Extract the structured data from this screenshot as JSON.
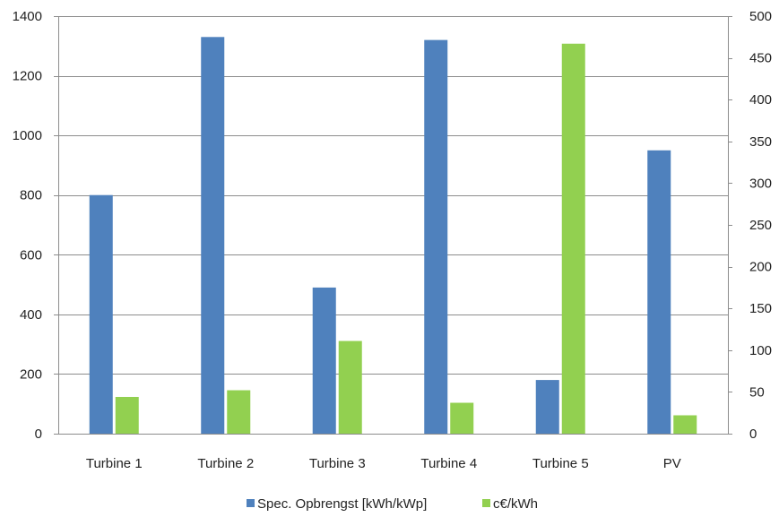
{
  "chart_data": {
    "type": "bar",
    "categories": [
      "Turbine 1",
      "Turbine 2",
      "Turbine 3",
      "Turbine 4",
      "Turbine 5",
      "PV"
    ],
    "series": [
      {
        "name": "Spec. Opbrengst [kWh/kWp]",
        "axis": "left",
        "color": "#4f81bd",
        "values": [
          800,
          1330,
          490,
          1320,
          180,
          950
        ]
      },
      {
        "name": "c€/kWh",
        "axis": "right",
        "color": "#92d050",
        "values": [
          44,
          52,
          111,
          37,
          467,
          22
        ]
      }
    ],
    "y_left": {
      "min": 0,
      "max": 1400,
      "step": 200,
      "ticks": [
        "0",
        "200",
        "400",
        "600",
        "800",
        "1000",
        "1200",
        "1400"
      ]
    },
    "y_right": {
      "min": 0,
      "max": 500,
      "step": 50,
      "ticks": [
        "0",
        "50",
        "100",
        "150",
        "200",
        "250",
        "300",
        "350",
        "400",
        "450",
        "500"
      ]
    },
    "grid": true,
    "legend_position": "bottom",
    "title": "",
    "xlabel": "",
    "ylabel": ""
  }
}
